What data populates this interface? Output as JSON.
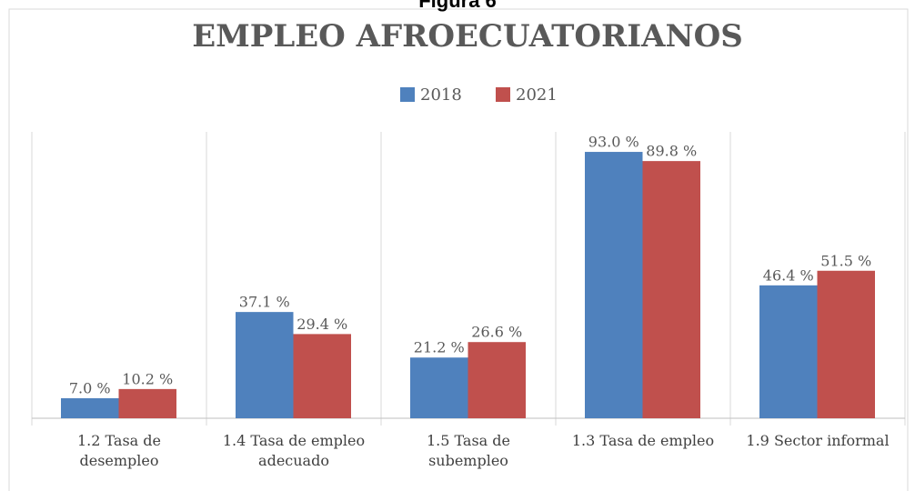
{
  "figure_label": "Figura 6",
  "chart_data": {
    "type": "bar",
    "title": "EMPLEO AFROECUATORIANOS",
    "categories": [
      "1.2 Tasa de\ndesempleo",
      "1.4 Tasa de empleo\nadecuado",
      "1.5 Tasa de\nsubempleo",
      "1.3 Tasa de empleo",
      "1.9 Sector informal"
    ],
    "series": [
      {
        "name": "2018",
        "color": "#4f81bd",
        "values": [
          7.0,
          37.1,
          21.2,
          93.0,
          46.4
        ],
        "value_labels": [
          "7.0 %",
          "37.1 %",
          "21.2 %",
          "93.0 %",
          "46.4 %"
        ]
      },
      {
        "name": "2021",
        "color": "#c0504d",
        "values": [
          10.2,
          29.4,
          26.6,
          89.8,
          51.5
        ],
        "value_labels": [
          "10.2 %",
          "29.4 %",
          "26.6 %",
          "89.8 %",
          "51.5 %"
        ]
      }
    ],
    "ylim": [
      0,
      100
    ],
    "legend": "top"
  }
}
